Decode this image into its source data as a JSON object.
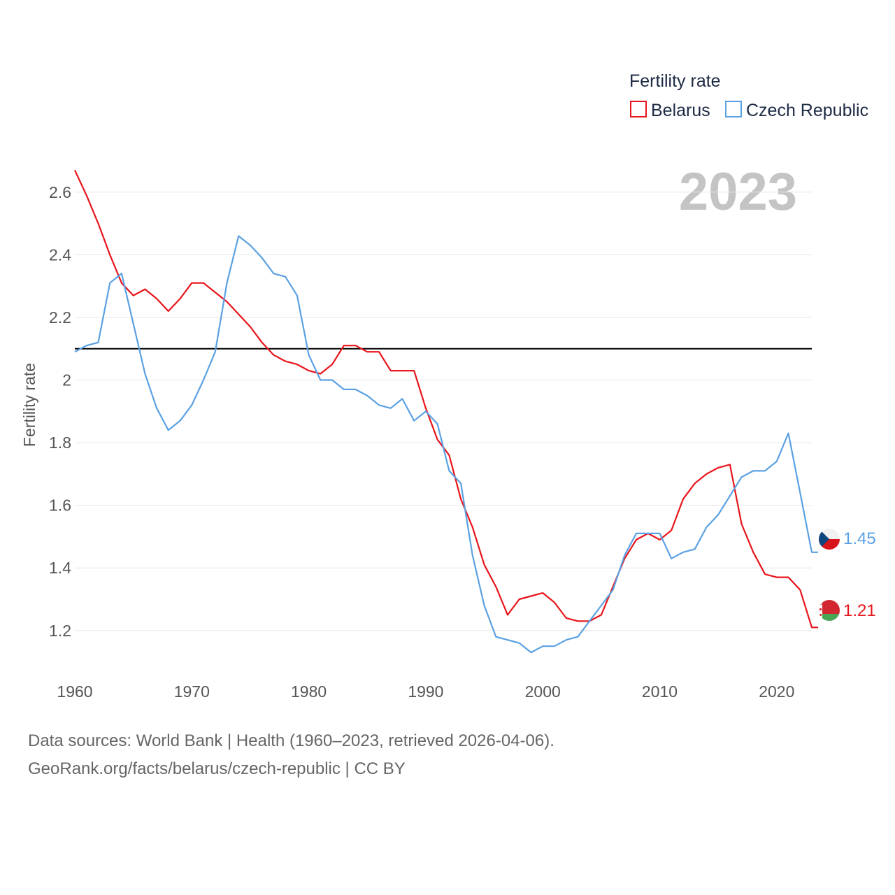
{
  "chart_data": {
    "type": "line",
    "ylabel": "Fertility rate",
    "xlabel": "",
    "legend_title": "Fertility rate",
    "legend_position": "top-right",
    "year_label": "2023",
    "xlim": [
      1960,
      2023
    ],
    "ylim": [
      1.07,
      2.7
    ],
    "xticks": [
      1960,
      1970,
      1980,
      1990,
      2000,
      2010,
      2020
    ],
    "yticks": [
      1.2,
      1.4,
      1.6,
      1.8,
      2,
      2.2,
      2.4,
      2.6
    ],
    "ytick_labels": [
      "1.2",
      "1.4",
      "1.6",
      "1.8",
      "2",
      "2.2",
      "2.4",
      "2.6"
    ],
    "reference_line": {
      "value": 2.1,
      "color": "#000000"
    },
    "x": [
      1960,
      1961,
      1962,
      1963,
      1964,
      1965,
      1966,
      1967,
      1968,
      1969,
      1970,
      1971,
      1972,
      1973,
      1974,
      1975,
      1976,
      1977,
      1978,
      1979,
      1980,
      1981,
      1982,
      1983,
      1984,
      1985,
      1986,
      1987,
      1988,
      1989,
      1990,
      1991,
      1992,
      1993,
      1994,
      1995,
      1996,
      1997,
      1998,
      1999,
      2000,
      2001,
      2002,
      2003,
      2004,
      2005,
      2006,
      2007,
      2008,
      2009,
      2010,
      2011,
      2012,
      2013,
      2014,
      2015,
      2016,
      2017,
      2018,
      2019,
      2020,
      2021,
      2022,
      2023
    ],
    "series": [
      {
        "name": "Belarus",
        "color": "#e8141b",
        "flag": "belarus",
        "end_label": "1.21",
        "values": [
          2.67,
          2.59,
          2.5,
          2.4,
          2.31,
          2.27,
          2.29,
          2.26,
          2.22,
          2.26,
          2.31,
          2.31,
          2.28,
          2.25,
          2.21,
          2.17,
          2.12,
          2.08,
          2.06,
          2.05,
          2.03,
          2.02,
          2.05,
          2.11,
          2.11,
          2.09,
          2.09,
          2.03,
          2.03,
          2.03,
          1.91,
          1.81,
          1.76,
          1.62,
          1.53,
          1.41,
          1.34,
          1.25,
          1.3,
          1.31,
          1.32,
          1.29,
          1.24,
          1.23,
          1.23,
          1.25,
          1.34,
          1.43,
          1.49,
          1.51,
          1.49,
          1.52,
          1.62,
          1.67,
          1.7,
          1.72,
          1.73,
          1.54,
          1.45,
          1.38,
          1.37,
          1.37,
          1.33,
          1.21
        ]
      },
      {
        "name": "Czech Republic",
        "color": "#5aa1e3",
        "flag": "czech-republic",
        "end_label": "1.45",
        "values": [
          2.09,
          2.11,
          2.12,
          2.31,
          2.34,
          2.18,
          2.02,
          1.91,
          1.84,
          1.87,
          1.92,
          2.0,
          2.09,
          2.31,
          2.46,
          2.43,
          2.39,
          2.34,
          2.33,
          2.27,
          2.08,
          2.0,
          2.0,
          1.97,
          1.97,
          1.95,
          1.92,
          1.91,
          1.94,
          1.87,
          1.9,
          1.86,
          1.71,
          1.67,
          1.44,
          1.28,
          1.18,
          1.17,
          1.16,
          1.13,
          1.15,
          1.15,
          1.17,
          1.18,
          1.23,
          1.28,
          1.33,
          1.44,
          1.51,
          1.51,
          1.51,
          1.43,
          1.45,
          1.46,
          1.53,
          1.57,
          1.63,
          1.69,
          1.71,
          1.71,
          1.74,
          1.83,
          1.64,
          1.45
        ]
      }
    ]
  },
  "footer": {
    "line1": "Data sources: World Bank | Health (1960–2023, retrieved 2026-04-06).",
    "line2": "GeoRank.org/facts/belarus/czech-republic | CC BY"
  }
}
